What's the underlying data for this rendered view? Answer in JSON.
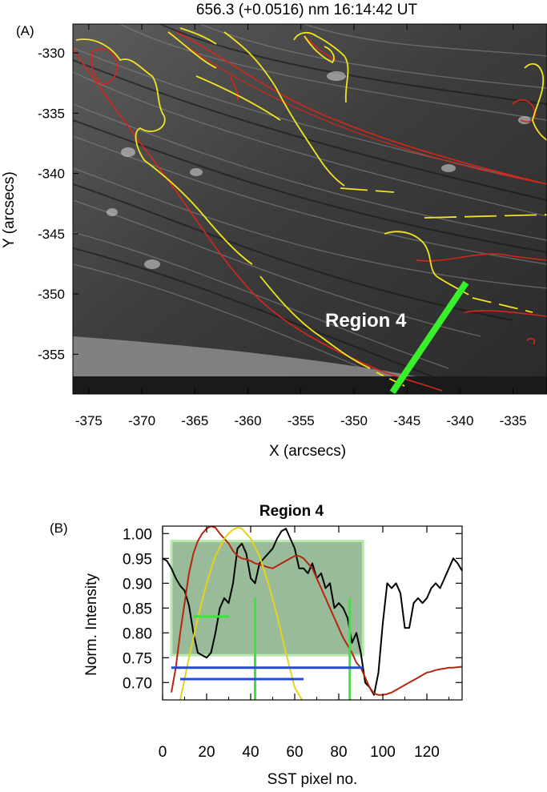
{
  "panel_a": {
    "label": "(A)",
    "title": "656.3 (+0.0516) nm   16:14:42 UT",
    "region_label": "Region 4",
    "xlabel": "X (arcsecs)",
    "ylabel": "Y (arcsecs)",
    "colors": {
      "background": "#3a3a3a",
      "contour_red": "#d6261b",
      "contour_yellow": "#f1e41f",
      "cut_line": "#37ef2b"
    }
  },
  "panel_b": {
    "label": "(B)",
    "colors": {
      "black": "#000000",
      "red": "#b7250f",
      "yellow": "#e6d21a",
      "green": "#39e53a",
      "blue": "#2548d6",
      "box_fill": "#6f9e6f"
    }
  },
  "chart_data": [
    {
      "type": "image",
      "title": "656.3 (+0.0516) nm   16:14:42 UT",
      "xlabel": "X (arcsecs)",
      "ylabel": "Y (arcsecs)",
      "xlim": [
        -376.5,
        -331.8
      ],
      "ylim": [
        -358.3,
        -327.6
      ],
      "xticks": [
        -375,
        -370,
        -365,
        -360,
        -355,
        -350,
        -345,
        -340,
        -335
      ],
      "yticks": [
        -330,
        -335,
        -340,
        -345,
        -350,
        -355
      ],
      "annotations": [
        "Region 4"
      ],
      "cut": {
        "from": [
          -346.0,
          -358.0
        ],
        "to": [
          -339.0,
          -348.6
        ]
      }
    },
    {
      "type": "line",
      "title": "Region 4",
      "xlabel": "SST pixel no.",
      "ylabel": "Norm. Intensity",
      "xlim": [
        0,
        136
      ],
      "ylim": [
        0.665,
        1.015
      ],
      "xticks": [
        0,
        20,
        40,
        60,
        80,
        100,
        120
      ],
      "yticks": [
        0.7,
        0.75,
        0.8,
        0.85,
        0.9,
        0.95,
        1.0
      ],
      "series": [
        {
          "color": "black",
          "x": [
            0,
            2,
            4,
            6,
            8,
            10,
            12,
            14,
            16,
            18,
            20,
            22,
            24,
            26,
            28,
            30,
            32,
            34,
            36,
            38,
            40,
            42,
            44,
            46,
            48,
            50,
            52,
            54,
            56,
            58,
            60,
            62,
            64,
            66,
            68,
            70,
            72,
            74,
            76,
            78,
            80,
            82,
            84,
            86,
            88,
            90,
            92,
            94,
            96,
            98,
            100,
            102,
            104,
            106,
            108,
            110,
            112,
            114,
            116,
            118,
            120,
            122,
            124,
            126,
            128,
            130,
            132,
            134,
            136
          ],
          "y": [
            0.95,
            0.945,
            0.93,
            0.91,
            0.895,
            0.885,
            0.855,
            0.8,
            0.76,
            0.755,
            0.75,
            0.76,
            0.8,
            0.85,
            0.87,
            0.86,
            0.9,
            0.97,
            0.98,
            0.96,
            0.91,
            0.9,
            0.94,
            0.95,
            0.96,
            0.97,
            0.99,
            1.005,
            1.01,
            0.99,
            0.97,
            0.93,
            0.93,
            0.92,
            0.94,
            0.91,
            0.92,
            0.89,
            0.9,
            0.85,
            0.86,
            0.85,
            0.83,
            0.78,
            0.8,
            0.76,
            0.7,
            0.69,
            0.675,
            0.72,
            0.82,
            0.9,
            0.89,
            0.9,
            0.88,
            0.81,
            0.81,
            0.86,
            0.87,
            0.86,
            0.87,
            0.89,
            0.9,
            0.89,
            0.91,
            0.93,
            0.95,
            0.94,
            0.925
          ]
        },
        {
          "color": "red",
          "x": [
            4,
            6,
            8,
            10,
            12,
            14,
            16,
            18,
            20,
            22,
            24,
            26,
            28,
            30,
            32,
            34,
            36,
            38,
            40,
            42,
            44,
            46,
            48,
            50,
            52,
            54,
            56,
            58,
            60,
            62,
            64,
            66,
            68,
            70,
            72,
            74,
            76,
            78,
            80,
            82,
            84,
            86,
            88,
            90,
            92,
            94,
            96,
            98,
            100,
            102,
            104,
            106,
            108,
            110,
            112,
            114,
            116,
            118,
            120,
            122,
            124,
            126,
            128,
            130,
            132,
            134,
            136
          ],
          "y": [
            0.68,
            0.73,
            0.8,
            0.86,
            0.92,
            0.96,
            0.985,
            1.0,
            1.01,
            1.015,
            1.012,
            1.0,
            0.99,
            0.98,
            0.965,
            0.955,
            0.95,
            0.948,
            0.945,
            0.94,
            0.938,
            0.935,
            0.932,
            0.93,
            0.935,
            0.94,
            0.945,
            0.95,
            0.955,
            0.955,
            0.95,
            0.94,
            0.93,
            0.91,
            0.89,
            0.87,
            0.85,
            0.83,
            0.81,
            0.79,
            0.775,
            0.76,
            0.74,
            0.73,
            0.71,
            0.69,
            0.678,
            0.675,
            0.675,
            0.677,
            0.68,
            0.685,
            0.69,
            0.695,
            0.7,
            0.705,
            0.71,
            0.715,
            0.72,
            0.722,
            0.725,
            0.727,
            0.728,
            0.73,
            0.73,
            0.731,
            0.732
          ]
        },
        {
          "color": "yellow",
          "x": [
            8,
            12,
            16,
            20,
            24,
            28,
            30,
            32,
            34,
            36,
            38,
            40,
            44,
            48,
            52,
            56,
            60,
            64
          ],
          "y": [
            0.665,
            0.75,
            0.83,
            0.9,
            0.955,
            0.99,
            1.0,
            1.008,
            1.012,
            1.01,
            1.0,
            0.99,
            0.955,
            0.9,
            0.835,
            0.76,
            0.69,
            0.66
          ]
        }
      ],
      "shapes": {
        "box": {
          "x": [
            4,
            91
          ],
          "y": [
            0.755,
            0.985
          ]
        },
        "green_verticals_x": [
          42,
          85
        ],
        "green_segment": {
          "x": [
            14,
            30
          ],
          "y": 0.833
        },
        "blue_lines": [
          {
            "x": [
              4,
              91
            ],
            "y": 0.73
          },
          {
            "x": [
              8,
              64
            ],
            "y": 0.707
          }
        ]
      }
    }
  ]
}
